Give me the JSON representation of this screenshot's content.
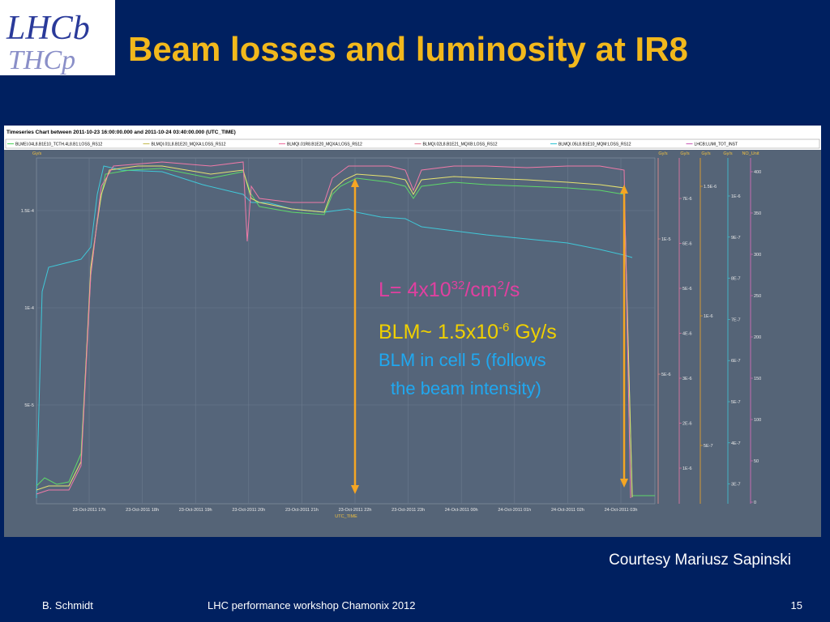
{
  "header": {
    "logo_top": "LHCb",
    "logo_bottom": "THCp",
    "title": "Beam losses and luminosity at IR8"
  },
  "chart": {
    "title": "Timeseries Chart between 2011-10-23 16:00:00.000 and 2011-10-24 03:40:00.000 (UTC_TIME)",
    "legend": [
      "BLMEI.04L8.B1E10_TCTH.4L8.B1:LOSS_RS12",
      "BLMQI.01L8.B1E20_MQXA:LOSS_RS12",
      "BLMQI.01R8.B1E20_MQXA:LOSS_RS12",
      "BLMQI.02L8.B1E21_MQXB:LOSS_RS12",
      "BLMQI.05L8.B1E10_MQM:LOSS_RS12",
      "LHCB:LUMI_TOT_INST"
    ],
    "x_label": "UTC_TIME",
    "x_ticks": [
      "23-Oct-2011 17h",
      "23-Oct-2011 18h",
      "23-Oct-2011 19h",
      "23-Oct-2011 20h",
      "23-Oct-2011 21h",
      "23-Oct-2011 22h",
      "23-Oct-2011 23h",
      "24-Oct-2011 00h",
      "24-Oct-2011 01h",
      "24-Oct-2011 02h",
      "24-Oct-2011 03h"
    ],
    "left_axis": {
      "unit": "Gy/s",
      "ticks": [
        "1.5E-4",
        "1E-4",
        "5E-5"
      ]
    },
    "right_axes": [
      {
        "unit": "Gy/s",
        "ticks": [
          "1E-5",
          "5E-6"
        ]
      },
      {
        "unit": "Gy/s",
        "ticks": [
          "7E-6",
          "6E-6",
          "5E-6",
          "4E-6",
          "3E-6",
          "2E-6",
          "1E-6"
        ]
      },
      {
        "unit": "Gy/s",
        "ticks": [
          "1.5E-6",
          "1E-6",
          "5E-7"
        ]
      },
      {
        "unit": "Gy/s",
        "ticks": [
          "1E-6",
          "9E-7",
          "8E-7",
          "7E-7",
          "6E-7",
          "5E-7",
          "4E-7",
          "3E-7"
        ]
      },
      {
        "unit": "NO_Unit",
        "ticks": [
          "400",
          "350",
          "300",
          "250",
          "200",
          "150",
          "100",
          "50",
          "0"
        ]
      }
    ]
  },
  "annotations": {
    "lumi": [
      "L= 4x10",
      "32",
      "/cm",
      "2",
      "/s"
    ],
    "blm": [
      "BLM~ 1.5x10",
      "-6",
      " Gy/s"
    ],
    "cell5": [
      "BLM in cell 5 (follows",
      "the beam intensity)"
    ],
    "courtesy": "Courtesy Mariusz Sapinski"
  },
  "footer": {
    "author": "B. Schmidt",
    "event": "LHC performance workshop Chamonix 2012",
    "page": "15"
  }
}
